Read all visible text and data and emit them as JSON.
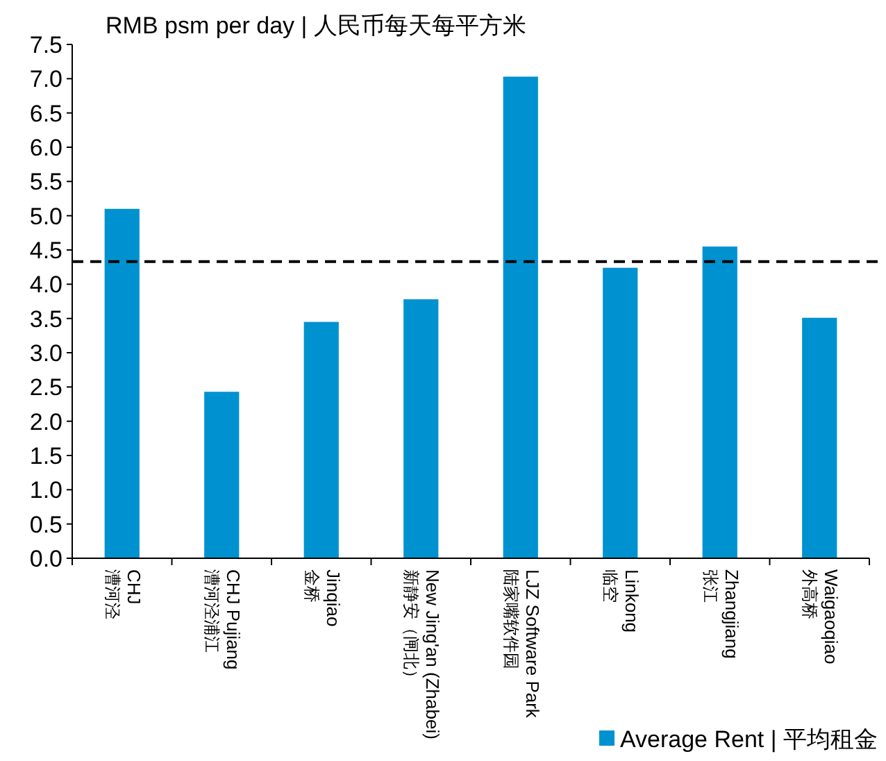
{
  "chart_data": {
    "type": "bar",
    "title": "RMB psm per day | 人民币每天每平方米",
    "categories": [
      "CHJ\n漕河泾",
      "CHJ Pujiang\n漕河泾浦江",
      "Jinqiao\n金桥",
      "New Jing'an (Zhabei)\n新静安（闸北）",
      "LJZ Software Park\n陆家嘴软件园",
      "Linkong\n临空",
      "Zhangjiang\n张江",
      "Waigaoqiao\n外高桥"
    ],
    "series": [
      {
        "name": "Average Rent | 平均租金",
        "color": "#0092d0",
        "values": [
          5.1,
          2.43,
          3.45,
          3.78,
          7.03,
          4.24,
          4.55,
          3.51
        ]
      }
    ],
    "ylim": [
      0,
      7.5
    ],
    "yticks": [
      {
        "value": 0,
        "label": "0.0"
      },
      {
        "value": 0.5,
        "label": "0.5"
      },
      {
        "value": 1,
        "label": "1.0"
      },
      {
        "value": 1.5,
        "label": "1.5"
      },
      {
        "value": 2,
        "label": "2.0"
      },
      {
        "value": 2.5,
        "label": "2.5"
      },
      {
        "value": 3,
        "label": "3.0"
      },
      {
        "value": 3.5,
        "label": "3.5"
      },
      {
        "value": 4,
        "label": "4.0"
      },
      {
        "value": 4.5,
        "label": "4.5"
      },
      {
        "value": 5,
        "label": "5.0"
      },
      {
        "value": 5.5,
        "label": "5.5"
      },
      {
        "value": 6,
        "label": "6.0"
      },
      {
        "value": 6.5,
        "label": "6.5"
      },
      {
        "value": 7,
        "label": "7.0"
      },
      {
        "value": 7.5,
        "label": "7.5"
      }
    ],
    "ref_lines": [
      {
        "axis": "y",
        "value": 4.33,
        "color": "#000000",
        "line_style": "dashed"
      }
    ],
    "grid": false,
    "legend": "bottom right"
  }
}
